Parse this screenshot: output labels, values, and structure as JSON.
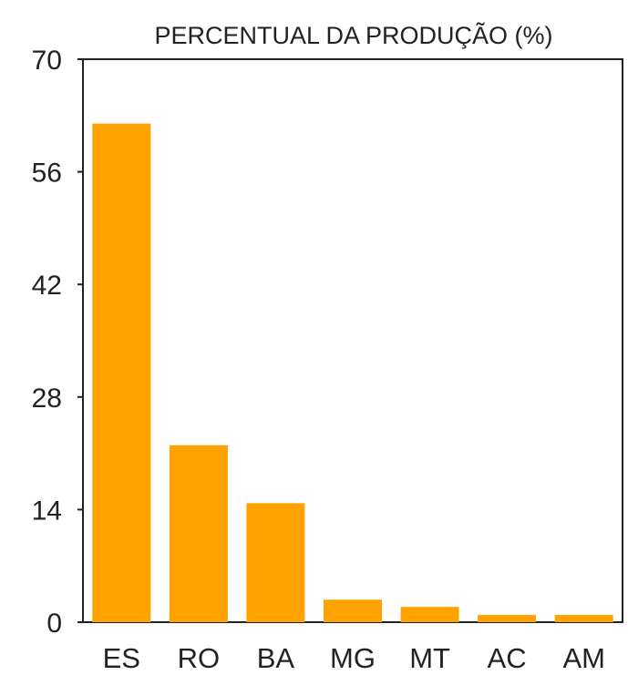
{
  "chart_data": {
    "type": "bar",
    "title": "PERCENTUAL DA PRODUÇÃO (%)",
    "xlabel": "",
    "ylabel": "",
    "categories": [
      "ES",
      "RO",
      "BA",
      "MG",
      "MT",
      "AC",
      "AM"
    ],
    "values": [
      62,
      22,
      14.8,
      2.8,
      1.9,
      0.9,
      0.9
    ],
    "ylim": [
      0,
      70
    ],
    "yticks": [
      "0",
      "14",
      "28",
      "42",
      "56",
      "70"
    ],
    "grid": false,
    "legend": "none",
    "bar_color": "#FFA200",
    "axis_color": "#222222"
  }
}
